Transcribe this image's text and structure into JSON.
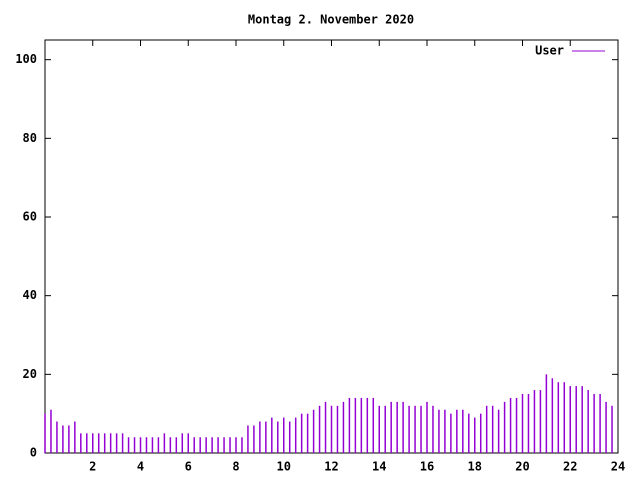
{
  "chart_data": {
    "type": "impulse",
    "title": "Montag 2. November 2020",
    "x": [
      0,
      0.25,
      0.5,
      0.75,
      1,
      1.25,
      1.5,
      1.75,
      2,
      2.25,
      2.5,
      2.75,
      3,
      3.25,
      3.5,
      3.75,
      4,
      4.25,
      4.5,
      4.75,
      5,
      5.25,
      5.5,
      5.75,
      6,
      6.25,
      6.5,
      6.75,
      7,
      7.25,
      7.5,
      7.75,
      8,
      8.25,
      8.5,
      8.75,
      9,
      9.25,
      9.5,
      9.75,
      10,
      10.25,
      10.5,
      10.75,
      11,
      11.25,
      11.5,
      11.75,
      12,
      12.25,
      12.5,
      12.75,
      13,
      13.25,
      13.5,
      13.75,
      14,
      14.25,
      14.5,
      14.75,
      15,
      15.25,
      15.5,
      15.75,
      16,
      16.25,
      16.5,
      16.75,
      17,
      17.25,
      17.5,
      17.75,
      18,
      18.25,
      18.5,
      18.75,
      19,
      19.25,
      19.5,
      19.75,
      20,
      20.25,
      20.5,
      20.75,
      21,
      21.25,
      21.5,
      21.75,
      22,
      22.25,
      22.5,
      22.75,
      23,
      23.25,
      23.5,
      23.75
    ],
    "series": [
      {
        "name": "User",
        "color": "#9400d3",
        "values": [
          10,
          11,
          8,
          7,
          7,
          8,
          5,
          5,
          5,
          5,
          5,
          5,
          5,
          5,
          4,
          4,
          4,
          4,
          4,
          4,
          5,
          4,
          4,
          5,
          5,
          4,
          4,
          4,
          4,
          4,
          4,
          4,
          4,
          4,
          7,
          7,
          8,
          8,
          9,
          8,
          9,
          8,
          9,
          10,
          10,
          11,
          12,
          13,
          12,
          12,
          13,
          14,
          14,
          14,
          14,
          14,
          12,
          12,
          13,
          13,
          13,
          12,
          12,
          12,
          13,
          12,
          11,
          11,
          10,
          11,
          11,
          10,
          9,
          10,
          12,
          12,
          11,
          13,
          14,
          14,
          15,
          15,
          16,
          16,
          20,
          19,
          18,
          18,
          17,
          17,
          17,
          16,
          15,
          15,
          13,
          12
        ]
      }
    ],
    "xlim": [
      0,
      24
    ],
    "xticks": [
      2,
      4,
      6,
      8,
      10,
      12,
      14,
      16,
      18,
      20,
      22,
      24
    ],
    "ylim": [
      0,
      105
    ],
    "yticks": [
      0,
      20,
      40,
      60,
      80,
      100
    ],
    "legend": "top-right"
  }
}
